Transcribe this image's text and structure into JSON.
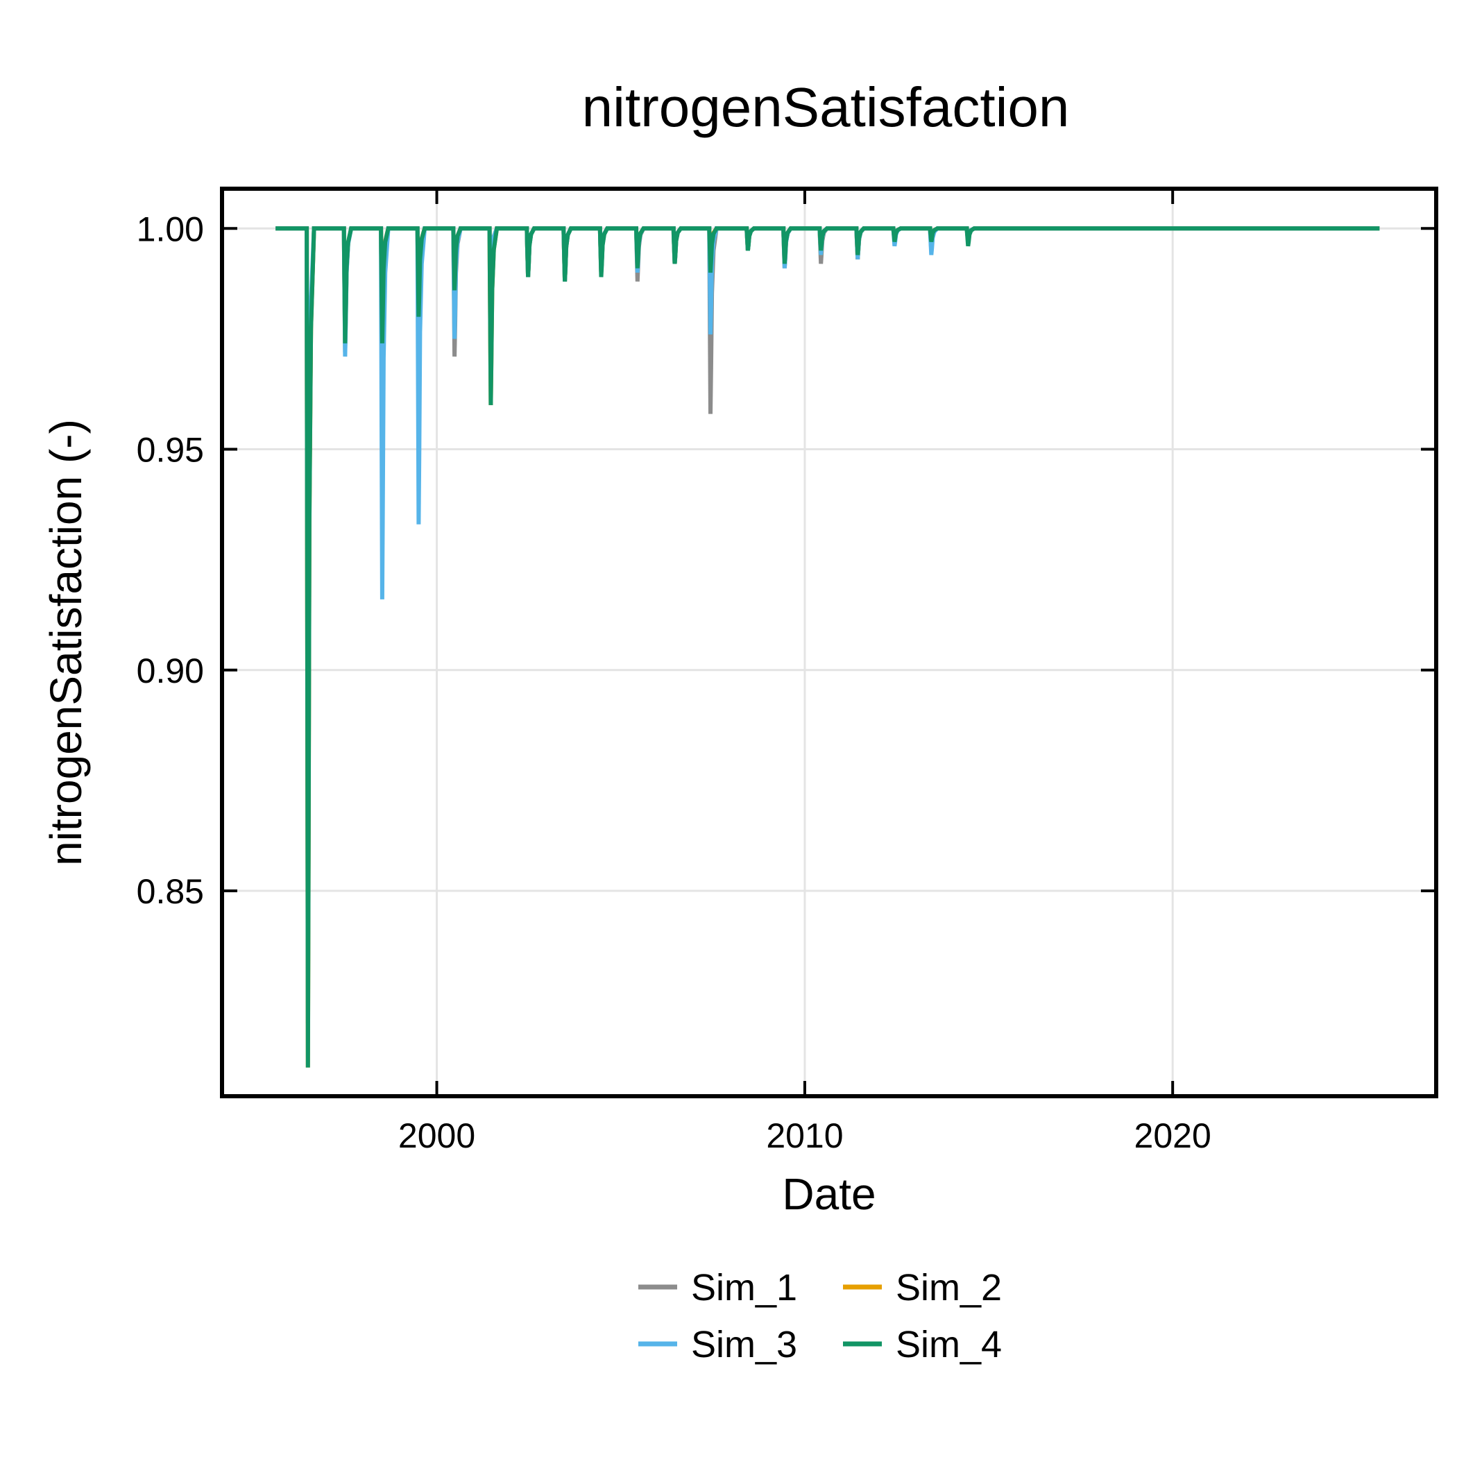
{
  "chart_data": {
    "type": "line",
    "title": "nitrogenSatisfaction",
    "xlabel": "Date",
    "ylabel": "nitrogenSatisfaction (-)",
    "x_axis_type": "date",
    "xlim": [
      "1994-03-01",
      "2027-03-01"
    ],
    "ylim": [
      0.8035,
      1.009
    ],
    "x_ticks": [
      "2000",
      "2010",
      "2020"
    ],
    "y_ticks": [
      "0.85",
      "0.90",
      "0.95",
      "1.00"
    ],
    "grid": true,
    "legend_placement": "bottom-center",
    "legend_columns": 2,
    "series": [
      {
        "name": "Sim_1",
        "color": "#8c8c8c",
        "baseline": 1.0,
        "start": "1995-08-15",
        "end": "2025-08-15",
        "dips": [
          [
            "1996-07-01",
            0.82
          ],
          [
            "1997-07-05",
            0.972
          ],
          [
            "1998-07-08",
            0.976
          ],
          [
            "1999-07-05",
            0.981
          ],
          [
            "2000-06-25",
            0.971
          ],
          [
            "2001-06-20",
            0.985
          ],
          [
            "2002-06-25",
            0.989
          ],
          [
            "2003-06-25",
            0.988
          ],
          [
            "2004-06-20",
            0.99
          ],
          [
            "2005-06-15",
            0.988
          ],
          [
            "2006-06-20",
            0.992
          ],
          [
            "2007-06-10",
            0.958
          ],
          [
            "2008-06-15",
            0.995
          ],
          [
            "2009-06-15",
            0.991
          ],
          [
            "2010-06-10",
            0.992
          ],
          [
            "2011-06-10",
            0.993
          ],
          [
            "2012-06-10",
            0.997
          ],
          [
            "2013-06-10",
            0.995
          ],
          [
            "2014-06-10",
            0.997
          ]
        ]
      },
      {
        "name": "Sim_2",
        "color": "#e69f00",
        "baseline": 1.0,
        "start": "1995-08-15",
        "end": "2025-08-15",
        "dips": [
          [
            "1996-07-01",
            0.81
          ],
          [
            "1997-07-05",
            0.974
          ],
          [
            "1998-07-08",
            0.975
          ],
          [
            "1999-07-05",
            0.981
          ],
          [
            "2000-06-25",
            0.986
          ],
          [
            "2001-06-20",
            0.96
          ],
          [
            "2002-06-25",
            0.989
          ],
          [
            "2003-06-25",
            0.988
          ],
          [
            "2004-06-20",
            0.99
          ],
          [
            "2005-06-15",
            0.991
          ],
          [
            "2006-06-20",
            0.992
          ],
          [
            "2007-06-10",
            0.992
          ],
          [
            "2008-06-15",
            0.995
          ],
          [
            "2009-06-15",
            0.992
          ],
          [
            "2010-06-10",
            0.994
          ],
          [
            "2011-06-10",
            0.993
          ],
          [
            "2012-06-10",
            0.997
          ],
          [
            "2013-06-10",
            0.997
          ],
          [
            "2014-06-10",
            0.997
          ]
        ]
      },
      {
        "name": "Sim_3",
        "color": "#56b4e9",
        "baseline": 1.0,
        "start": "1995-08-15",
        "end": "2025-08-15",
        "dips": [
          [
            "1996-07-01",
            0.862
          ],
          [
            "1997-07-05",
            0.971
          ],
          [
            "1998-07-08",
            0.916
          ],
          [
            "1999-07-05",
            0.933
          ],
          [
            "2000-06-25",
            0.975
          ],
          [
            "2001-06-20",
            0.984
          ],
          [
            "2002-06-25",
            0.989
          ],
          [
            "2003-06-25",
            0.988
          ],
          [
            "2004-06-20",
            0.99
          ],
          [
            "2005-06-15",
            0.99
          ],
          [
            "2006-06-20",
            0.992
          ],
          [
            "2007-06-10",
            0.976
          ],
          [
            "2008-06-15",
            0.995
          ],
          [
            "2009-06-15",
            0.991
          ],
          [
            "2010-06-10",
            0.994
          ],
          [
            "2011-06-10",
            0.993
          ],
          [
            "2012-06-10",
            0.996
          ],
          [
            "2013-06-10",
            0.994
          ],
          [
            "2014-06-10",
            0.997
          ]
        ]
      },
      {
        "name": "Sim_4",
        "color": "#129565",
        "baseline": 1.0,
        "start": "1995-08-15",
        "end": "2025-08-15",
        "dips": [
          [
            "1996-07-01",
            0.81
          ],
          [
            "1997-07-05",
            0.974
          ],
          [
            "1998-07-08",
            0.974
          ],
          [
            "1999-07-05",
            0.98
          ],
          [
            "2000-06-25",
            0.986
          ],
          [
            "2001-06-20",
            0.96
          ],
          [
            "2002-06-25",
            0.989
          ],
          [
            "2003-06-25",
            0.988
          ],
          [
            "2004-06-20",
            0.989
          ],
          [
            "2005-06-15",
            0.991
          ],
          [
            "2006-06-20",
            0.992
          ],
          [
            "2007-06-10",
            0.99
          ],
          [
            "2008-06-15",
            0.995
          ],
          [
            "2009-06-15",
            0.992
          ],
          [
            "2010-06-10",
            0.995
          ],
          [
            "2011-06-10",
            0.994
          ],
          [
            "2012-06-10",
            0.997
          ],
          [
            "2013-06-10",
            0.997
          ],
          [
            "2014-06-10",
            0.996
          ]
        ]
      }
    ]
  }
}
